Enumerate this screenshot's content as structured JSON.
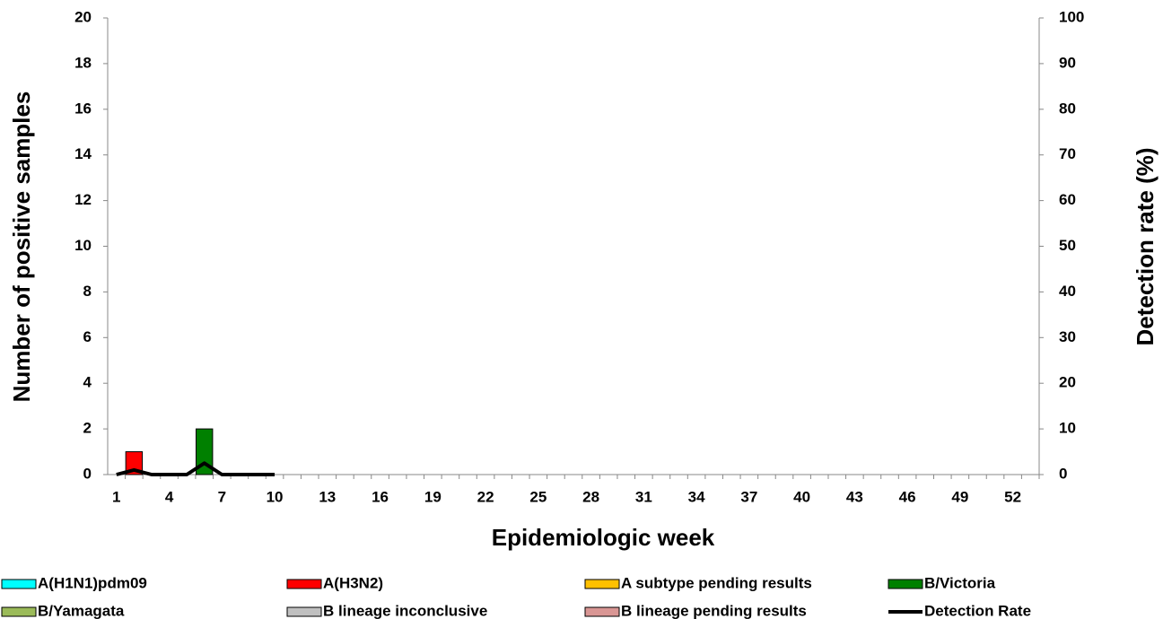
{
  "chart_data": {
    "type": "bar",
    "x_label": "Epidemiologic week",
    "y_label": "Number of positive samples",
    "y2_label": "Detection rate (%)",
    "stacked": true,
    "categories": [
      "1",
      null,
      null,
      "4",
      null,
      null,
      "7",
      null,
      null,
      "10",
      null,
      null,
      "13",
      null,
      null,
      "16",
      null,
      null,
      "19",
      null,
      null,
      "22",
      null,
      null,
      "25",
      null,
      null,
      "28",
      null,
      null,
      "31",
      null,
      null,
      "34",
      null,
      null,
      "37",
      null,
      null,
      "40",
      null,
      null,
      "43",
      null,
      null,
      "46",
      null,
      null,
      "49",
      null,
      null,
      "52",
      null
    ],
    "series": [
      {
        "name": "A(H1N1)pdm09",
        "color": "#00ffff",
        "values": [
          0,
          0,
          0,
          0,
          0,
          0,
          0,
          0,
          0,
          0,
          null,
          null,
          null,
          null,
          null,
          null,
          null,
          null,
          null,
          null,
          null,
          null,
          null,
          null,
          null,
          null,
          null,
          null,
          null,
          null,
          null,
          null,
          null,
          null,
          null,
          null,
          null,
          null,
          null,
          null,
          null,
          null,
          null,
          null,
          null,
          null,
          null,
          null,
          null,
          null,
          null,
          null,
          null
        ]
      },
      {
        "name": "A(H3N2)",
        "color": "#ff0000",
        "values": [
          0,
          1,
          0,
          0,
          0,
          0,
          0,
          0,
          0,
          0,
          null,
          null,
          null,
          null,
          null,
          null,
          null,
          null,
          null,
          null,
          null,
          null,
          null,
          null,
          null,
          null,
          null,
          null,
          null,
          null,
          null,
          null,
          null,
          null,
          null,
          null,
          null,
          null,
          null,
          null,
          null,
          null,
          null,
          null,
          null,
          null,
          null,
          null,
          null,
          null,
          null,
          null,
          null
        ]
      },
      {
        "name": "A subtype pending results",
        "color": "#ffc000",
        "values": [
          0,
          0,
          0,
          0,
          0,
          0,
          0,
          0,
          0,
          0,
          null,
          null,
          null,
          null,
          null,
          null,
          null,
          null,
          null,
          null,
          null,
          null,
          null,
          null,
          null,
          null,
          null,
          null,
          null,
          null,
          null,
          null,
          null,
          null,
          null,
          null,
          null,
          null,
          null,
          null,
          null,
          null,
          null,
          null,
          null,
          null,
          null,
          null,
          null,
          null,
          null,
          null,
          null
        ]
      },
      {
        "name": "B/Victoria",
        "color": "#008000",
        "values": [
          0,
          0,
          0,
          0,
          0,
          2,
          0,
          0,
          0,
          0,
          null,
          null,
          null,
          null,
          null,
          null,
          null,
          null,
          null,
          null,
          null,
          null,
          null,
          null,
          null,
          null,
          null,
          null,
          null,
          null,
          null,
          null,
          null,
          null,
          null,
          null,
          null,
          null,
          null,
          null,
          null,
          null,
          null,
          null,
          null,
          null,
          null,
          null,
          null,
          null,
          null,
          null,
          null
        ]
      },
      {
        "name": "B/Yamagata",
        "color": "#9bbb59",
        "values": [
          0,
          0,
          0,
          0,
          0,
          0,
          0,
          0,
          0,
          0,
          null,
          null,
          null,
          null,
          null,
          null,
          null,
          null,
          null,
          null,
          null,
          null,
          null,
          null,
          null,
          null,
          null,
          null,
          null,
          null,
          null,
          null,
          null,
          null,
          null,
          null,
          null,
          null,
          null,
          null,
          null,
          null,
          null,
          null,
          null,
          null,
          null,
          null,
          null,
          null,
          null,
          null,
          null
        ]
      },
      {
        "name": "B lineage inconclusive",
        "color": "#c0c0c0",
        "values": [
          0,
          0,
          0,
          0,
          0,
          0,
          0,
          0,
          0,
          0,
          null,
          null,
          null,
          null,
          null,
          null,
          null,
          null,
          null,
          null,
          null,
          null,
          null,
          null,
          null,
          null,
          null,
          null,
          null,
          null,
          null,
          null,
          null,
          null,
          null,
          null,
          null,
          null,
          null,
          null,
          null,
          null,
          null,
          null,
          null,
          null,
          null,
          null,
          null,
          null,
          null,
          null,
          null
        ]
      },
      {
        "name": "B lineage pending results",
        "color": "#d99694",
        "values": [
          0,
          0,
          0,
          0,
          0,
          0,
          0,
          0,
          0,
          0,
          null,
          null,
          null,
          null,
          null,
          null,
          null,
          null,
          null,
          null,
          null,
          null,
          null,
          null,
          null,
          null,
          null,
          null,
          null,
          null,
          null,
          null,
          null,
          null,
          null,
          null,
          null,
          null,
          null,
          null,
          null,
          null,
          null,
          null,
          null,
          null,
          null,
          null,
          null,
          null,
          null,
          null,
          null
        ]
      },
      {
        "name": "Detection Rate",
        "color": "#000000",
        "type": "line",
        "axis": "y2",
        "values": [
          0,
          1,
          0,
          0,
          0,
          2.5,
          0,
          0,
          0,
          0,
          null,
          null,
          null,
          null,
          null,
          null,
          null,
          null,
          null,
          null,
          null,
          null,
          null,
          null,
          null,
          null,
          null,
          null,
          null,
          null,
          null,
          null,
          null,
          null,
          null,
          null,
          null,
          null,
          null,
          null,
          null,
          null,
          null,
          null,
          null,
          null,
          null,
          null,
          null,
          null,
          null,
          null,
          null
        ]
      }
    ],
    "ylim": [
      0,
      20
    ],
    "yticks": [
      0,
      2,
      4,
      6,
      8,
      10,
      12,
      14,
      16,
      18,
      20
    ],
    "y2lim": [
      0,
      100
    ],
    "y2ticks": [
      0,
      10,
      20,
      30,
      40,
      50,
      60,
      70,
      80,
      90,
      100
    ],
    "grid": false
  }
}
